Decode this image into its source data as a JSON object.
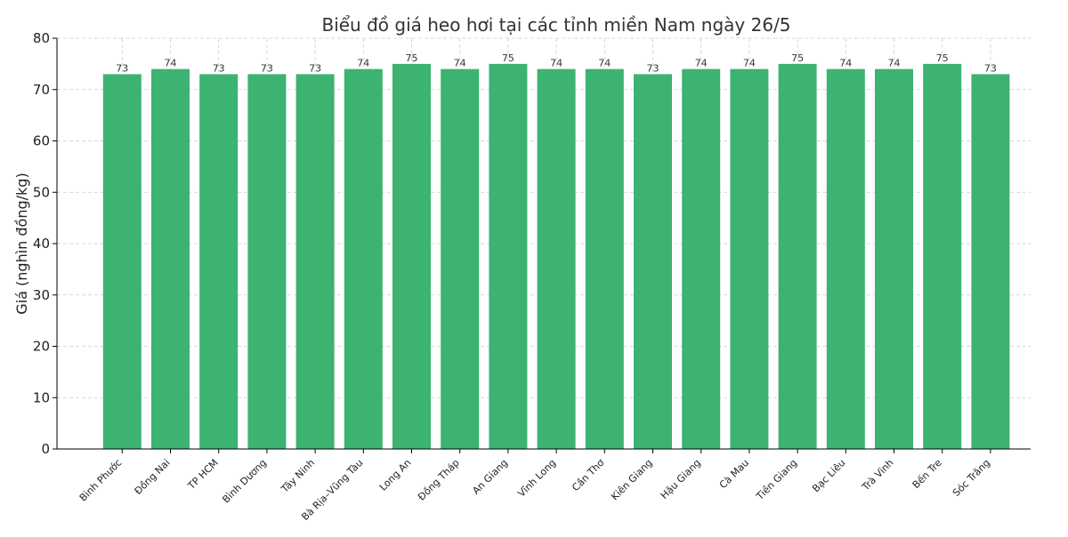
{
  "chart_data": {
    "type": "bar",
    "title": "Biểu đồ giá heo hơi tại các tỉnh miền Nam ngày 26/5",
    "xlabel": "",
    "ylabel": "Giá (nghìn đồng/kg)",
    "ylim": [
      0,
      80
    ],
    "yticks": [
      0,
      10,
      20,
      30,
      40,
      50,
      60,
      70,
      80
    ],
    "grid": true,
    "bar_color": "#3cb371",
    "categories": [
      "Bình Phước",
      "Đồng Nai",
      "TP HCM",
      "Bình Dương",
      "Tây Ninh",
      "Bà Rịa–Vũng Tàu",
      "Long An",
      "Đồng Tháp",
      "An Giang",
      "Vĩnh Long",
      "Cần Thơ",
      "Kiên Giang",
      "Hậu Giang",
      "Cà Mau",
      "Tiền Giang",
      "Bạc Liêu",
      "Trà Vinh",
      "Bến Tre",
      "Sóc Trăng"
    ],
    "values": [
      73,
      74,
      73,
      73,
      73,
      74,
      75,
      74,
      75,
      74,
      74,
      73,
      74,
      74,
      75,
      74,
      74,
      75,
      73
    ]
  }
}
